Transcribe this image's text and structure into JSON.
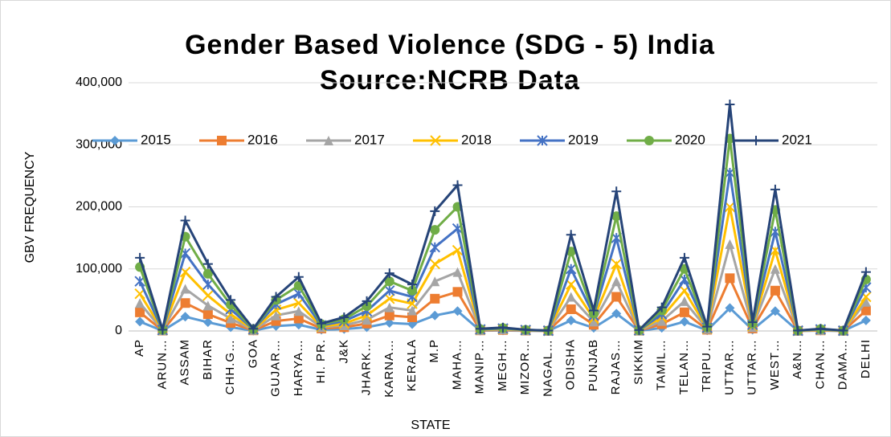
{
  "chart_data": {
    "type": "line",
    "title": "Gender Based Violence (SDG - 5) India",
    "subtitle": "Source:NCRB Data",
    "y_label": "GBV FREQUENCY",
    "x_label": "STATE",
    "categories": [
      "AP",
      "ARUN…",
      "ASSAM",
      "BIHAR",
      "CHH.G…",
      "GOA",
      "GUJAR…",
      "HARYA…",
      "HI. PR.",
      "J&K",
      "JHARK…",
      "KARNA…",
      "KERALA",
      "M.P",
      "MAHA…",
      "MANIP…",
      "MEGH…",
      "MIZOR…",
      "NAGAL…",
      "ODISHA",
      "PUNJAB",
      "RAJAS…",
      "SIKKIM",
      "TAMIL…",
      "TELAN…",
      "TRIPU…",
      "UTTAR…",
      "UTTAR…",
      "WEST…",
      "A&N…",
      "CHAN…",
      "DAMA…",
      "DELHI"
    ],
    "series": [
      {
        "name": "2015",
        "color": "#5b9bd5",
        "values": [
          15000,
          300,
          23000,
          14000,
          6000,
          500,
          8000,
          10000,
          2000,
          3000,
          6000,
          13000,
          11000,
          25000,
          32000,
          500,
          800,
          300,
          100,
          17000,
          5000,
          28000,
          200,
          5000,
          15000,
          1000,
          37000,
          2000,
          32000,
          100,
          500,
          100,
          17000
        ]
      },
      {
        "name": "2016",
        "color": "#ed7d31",
        "values": [
          30000,
          600,
          45000,
          27000,
          13000,
          1000,
          16000,
          20000,
          4000,
          6000,
          12000,
          25000,
          22000,
          52000,
          63000,
          1000,
          1600,
          600,
          200,
          35000,
          10000,
          55000,
          400,
          11000,
          30000,
          2000,
          85000,
          4000,
          65000,
          200,
          1000,
          200,
          33000
        ]
      },
      {
        "name": "2017",
        "color": "#a5a5a5",
        "values": [
          45000,
          1000,
          68000,
          41000,
          20000,
          1500,
          25000,
          32000,
          6000,
          9000,
          18000,
          38000,
          33000,
          80000,
          95000,
          1500,
          2400,
          900,
          300,
          55000,
          15000,
          80000,
          600,
          16000,
          48000,
          3000,
          140000,
          6000,
          100000,
          300,
          1500,
          300,
          47000
        ]
      },
      {
        "name": "2018",
        "color": "#ffc000",
        "values": [
          60000,
          1200,
          95000,
          57000,
          27000,
          2000,
          34000,
          45000,
          7000,
          12000,
          25000,
          52000,
          44000,
          108000,
          130000,
          2000,
          3200,
          1200,
          400,
          75000,
          20000,
          108000,
          800,
          22000,
          65000,
          4000,
          200000,
          8000,
          130000,
          400,
          2000,
          400,
          55000
        ]
      },
      {
        "name": "2019",
        "color": "#4472c4",
        "values": [
          80000,
          1500,
          125000,
          75000,
          35000,
          2500,
          43000,
          60000,
          9000,
          16000,
          32000,
          65000,
          55000,
          135000,
          165000,
          2500,
          4000,
          1500,
          500,
          100000,
          25000,
          150000,
          1000,
          27000,
          83000,
          5000,
          255000,
          10000,
          160000,
          500,
          2500,
          500,
          70000
        ]
      },
      {
        "name": "2020",
        "color": "#70ad47",
        "values": [
          103000,
          1800,
          152000,
          92000,
          42000,
          3000,
          50000,
          73000,
          11000,
          19000,
          40000,
          80000,
          65000,
          163000,
          200000,
          3000,
          4800,
          1800,
          600,
          128000,
          28000,
          185000,
          1200,
          33000,
          100000,
          6000,
          310000,
          12000,
          195000,
          600,
          3000,
          600,
          83000
        ]
      },
      {
        "name": "2021",
        "color": "#264478",
        "values": [
          118000,
          2000,
          178000,
          108000,
          50000,
          3500,
          55000,
          87000,
          12000,
          22000,
          48000,
          93000,
          75000,
          193000,
          235000,
          3500,
          5500,
          2000,
          700,
          155000,
          33000,
          225000,
          1400,
          38000,
          118000,
          7000,
          365000,
          14000,
          228000,
          700,
          3500,
          700,
          95000
        ]
      }
    ],
    "ylim": [
      0,
      400000
    ],
    "yticks": [
      0,
      {
        "value": 100000,
        "label": "100,000"
      },
      {
        "value": 200000,
        "label": "200,000"
      },
      {
        "value": 300000,
        "label": "300,000"
      },
      {
        "value": 400000,
        "label": "400,000"
      }
    ],
    "grid": true,
    "legend": "top"
  }
}
